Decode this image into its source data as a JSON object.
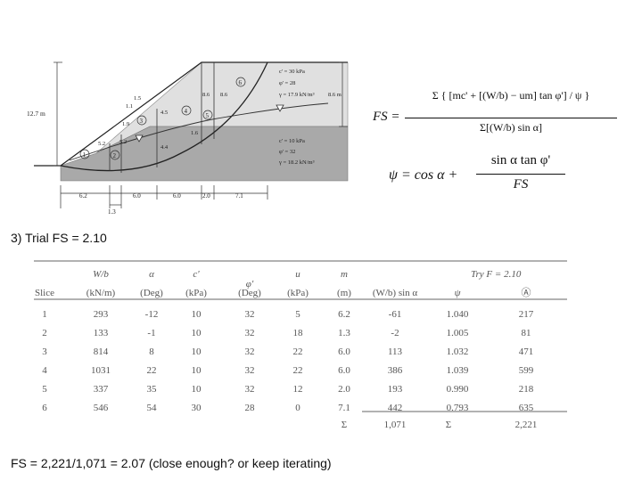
{
  "diagram": {
    "height_label": "12.7 m",
    "upper_soil": [
      "c' = 30 kPa",
      "φ' = 28",
      "γ = 17.9 kN/m³"
    ],
    "lower_soil": [
      "c' = 10 kPa",
      "φ' = 32",
      "γ = 18.2 kN/m³"
    ],
    "right_height": "8.6 m",
    "slice_numbers": [
      "1",
      "2",
      "3",
      "4",
      "5",
      "6"
    ],
    "heights": [
      "1.5",
      "1.9",
      "4.5",
      "8.6",
      "8.6",
      "5.2",
      "5.2",
      "4.4",
      "1.6",
      "1.1"
    ],
    "widths": [
      "6.2",
      "6.0",
      "6.0",
      "2.0",
      "7.1"
    ],
    "bottom_width": "1.3"
  },
  "equations": {
    "fs_lhs": "FS =",
    "fs_numerator": "Σ { [mc' + [(W/b) − um] tan φ'] / ψ }",
    "fs_denominator": "Σ[(W/b) sin α]",
    "psi_lhs": "ψ = cos α +",
    "psi_numerator": "sin α tan φ'",
    "psi_denominator": "FS"
  },
  "trial_heading": "3) Trial FS = 2.10",
  "table": {
    "try_label": "Try F = 2.10",
    "header_top": [
      "W/b",
      "α",
      "c'",
      "φ'",
      "u",
      "m"
    ],
    "header_bottom": [
      "Slice",
      "(kN/m)",
      "(Deg)",
      "(kPa)",
      "(Deg)",
      "(kPa)",
      "(m)",
      "(W/b) sin α",
      "ψ",
      "Ⓐ"
    ],
    "rows": [
      [
        "1",
        "293",
        "-12",
        "10",
        "32",
        "5",
        "6.2",
        "-61",
        "1.040",
        "217"
      ],
      [
        "2",
        "133",
        "-1",
        "10",
        "32",
        "18",
        "1.3",
        "-2",
        "1.005",
        "81"
      ],
      [
        "3",
        "814",
        "8",
        "10",
        "32",
        "22",
        "6.0",
        "113",
        "1.032",
        "471"
      ],
      [
        "4",
        "1031",
        "22",
        "10",
        "32",
        "22",
        "6.0",
        "386",
        "1.039",
        "599"
      ],
      [
        "5",
        "337",
        "35",
        "10",
        "32",
        "12",
        "2.0",
        "193",
        "0.990",
        "218"
      ],
      [
        "6",
        "546",
        "54",
        "30",
        "28",
        "0",
        "7.1",
        "442",
        "0.793",
        "635"
      ]
    ],
    "sum_symbol": "Σ",
    "sum_ws": "1,071",
    "sum_result": "2,221"
  },
  "conclusion": "FS = 2,221/1,071 = 2.07 (close enough? or keep iterating)"
}
